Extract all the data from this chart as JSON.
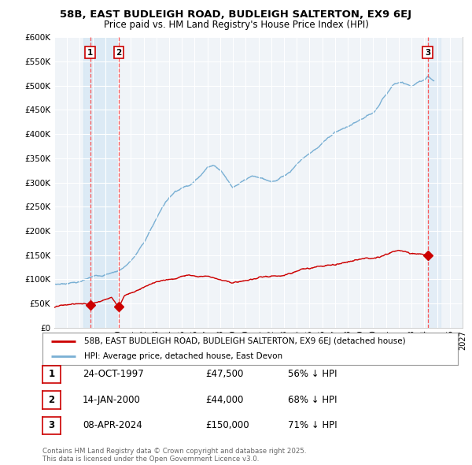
{
  "title_line1": "58B, EAST BUDLEIGH ROAD, BUDLEIGH SALTERTON, EX9 6EJ",
  "title_line2": "Price paid vs. HM Land Registry's House Price Index (HPI)",
  "ylim": [
    0,
    600000
  ],
  "yticks": [
    0,
    50000,
    100000,
    150000,
    200000,
    250000,
    300000,
    350000,
    400000,
    450000,
    500000,
    550000,
    600000
  ],
  "ytick_labels": [
    "£0",
    "£50K",
    "£100K",
    "£150K",
    "£200K",
    "£250K",
    "£300K",
    "£350K",
    "£400K",
    "£450K",
    "£500K",
    "£550K",
    "£600K"
  ],
  "xlim_start": 1995.0,
  "xlim_end": 2027.0,
  "xticks": [
    1995,
    1996,
    1997,
    1998,
    1999,
    2000,
    2001,
    2002,
    2003,
    2004,
    2005,
    2006,
    2007,
    2008,
    2009,
    2010,
    2011,
    2012,
    2013,
    2014,
    2015,
    2016,
    2017,
    2018,
    2019,
    2020,
    2021,
    2022,
    2023,
    2024,
    2025,
    2026,
    2027
  ],
  "transactions": [
    {
      "date": 1997.81,
      "price": 47500,
      "label": "1"
    },
    {
      "date": 2000.04,
      "price": 44000,
      "label": "2"
    },
    {
      "date": 2024.27,
      "price": 150000,
      "label": "3"
    }
  ],
  "legend_entries": [
    {
      "color": "#cc0000",
      "text": "58B, EAST BUDLEIGH ROAD, BUDLEIGH SALTERTON, EX9 6EJ (detached house)"
    },
    {
      "color": "#7ab0d4",
      "text": "HPI: Average price, detached house, East Devon"
    }
  ],
  "table_rows": [
    {
      "num": "1",
      "date": "24-OCT-1997",
      "price": "£47,500",
      "note": "56% ↓ HPI"
    },
    {
      "num": "2",
      "date": "14-JAN-2000",
      "price": "£44,000",
      "note": "68% ↓ HPI"
    },
    {
      "num": "3",
      "date": "08-APR-2024",
      "price": "£150,000",
      "note": "71% ↓ HPI"
    }
  ],
  "footer": "Contains HM Land Registry data © Crown copyright and database right 2025.\nThis data is licensed under the Open Government Licence v3.0.",
  "bg_color": "#ffffff",
  "plot_bg_color": "#f0f4f8",
  "grid_color": "#ffffff",
  "hpi_color": "#7ab0d4",
  "price_color": "#cc0000",
  "marker_color": "#cc0000",
  "shade_color": "#d0e4f4",
  "hpi_anchors": [
    [
      1995.0,
      90000
    ],
    [
      1995.5,
      91000
    ],
    [
      1996.0,
      93000
    ],
    [
      1996.5,
      95000
    ],
    [
      1997.0,
      96000
    ],
    [
      1997.5,
      100000
    ],
    [
      1998.0,
      104000
    ],
    [
      1998.5,
      107000
    ],
    [
      1999.0,
      110000
    ],
    [
      1999.5,
      114000
    ],
    [
      2000.0,
      118000
    ],
    [
      2000.5,
      127000
    ],
    [
      2001.0,
      138000
    ],
    [
      2001.5,
      155000
    ],
    [
      2002.0,
      175000
    ],
    [
      2002.5,
      200000
    ],
    [
      2003.0,
      225000
    ],
    [
      2003.5,
      252000
    ],
    [
      2004.0,
      270000
    ],
    [
      2004.5,
      285000
    ],
    [
      2005.0,
      292000
    ],
    [
      2005.5,
      298000
    ],
    [
      2006.0,
      308000
    ],
    [
      2006.5,
      322000
    ],
    [
      2007.0,
      338000
    ],
    [
      2007.5,
      342000
    ],
    [
      2008.0,
      335000
    ],
    [
      2008.5,
      318000
    ],
    [
      2009.0,
      300000
    ],
    [
      2009.5,
      305000
    ],
    [
      2010.0,
      312000
    ],
    [
      2010.5,
      318000
    ],
    [
      2011.0,
      315000
    ],
    [
      2011.5,
      310000
    ],
    [
      2012.0,
      308000
    ],
    [
      2012.5,
      312000
    ],
    [
      2013.0,
      320000
    ],
    [
      2013.5,
      330000
    ],
    [
      2014.0,
      345000
    ],
    [
      2014.5,
      358000
    ],
    [
      2015.0,
      368000
    ],
    [
      2015.5,
      378000
    ],
    [
      2016.0,
      390000
    ],
    [
      2016.5,
      400000
    ],
    [
      2017.0,
      412000
    ],
    [
      2017.5,
      418000
    ],
    [
      2018.0,
      422000
    ],
    [
      2018.5,
      428000
    ],
    [
      2019.0,
      432000
    ],
    [
      2019.5,
      438000
    ],
    [
      2020.0,
      442000
    ],
    [
      2020.5,
      460000
    ],
    [
      2021.0,
      480000
    ],
    [
      2021.5,
      500000
    ],
    [
      2022.0,
      510000
    ],
    [
      2022.5,
      505000
    ],
    [
      2023.0,
      498000
    ],
    [
      2023.5,
      505000
    ],
    [
      2024.0,
      512000
    ],
    [
      2024.25,
      520000
    ],
    [
      2024.5,
      515000
    ],
    [
      2024.75,
      510000
    ]
  ],
  "price_anchors": [
    [
      1995.0,
      42000
    ],
    [
      1995.5,
      44000
    ],
    [
      1996.0,
      45000
    ],
    [
      1996.5,
      46000
    ],
    [
      1997.0,
      47000
    ],
    [
      1997.81,
      47500
    ],
    [
      1997.82,
      47500
    ],
    [
      1998.0,
      50000
    ],
    [
      1998.5,
      55000
    ],
    [
      1999.0,
      60000
    ],
    [
      1999.5,
      65000
    ],
    [
      2000.04,
      44000
    ],
    [
      2000.05,
      44000
    ],
    [
      2000.5,
      70000
    ],
    [
      2001.0,
      77000
    ],
    [
      2001.5,
      82000
    ],
    [
      2002.0,
      88000
    ],
    [
      2002.5,
      92000
    ],
    [
      2003.0,
      95000
    ],
    [
      2003.5,
      98000
    ],
    [
      2004.0,
      100000
    ],
    [
      2004.5,
      103000
    ],
    [
      2005.0,
      107000
    ],
    [
      2005.5,
      108000
    ],
    [
      2006.0,
      108000
    ],
    [
      2006.5,
      108000
    ],
    [
      2007.0,
      108000
    ],
    [
      2007.5,
      107000
    ],
    [
      2008.0,
      105000
    ],
    [
      2008.5,
      103000
    ],
    [
      2009.0,
      100000
    ],
    [
      2009.5,
      101000
    ],
    [
      2010.0,
      103000
    ],
    [
      2010.5,
      104000
    ],
    [
      2011.0,
      107000
    ],
    [
      2011.5,
      108000
    ],
    [
      2012.0,
      108000
    ],
    [
      2012.5,
      109000
    ],
    [
      2013.0,
      110000
    ],
    [
      2013.5,
      112000
    ],
    [
      2014.0,
      115000
    ],
    [
      2014.5,
      118000
    ],
    [
      2015.0,
      121000
    ],
    [
      2015.5,
      124000
    ],
    [
      2016.0,
      127000
    ],
    [
      2016.5,
      130000
    ],
    [
      2017.0,
      133000
    ],
    [
      2017.5,
      136000
    ],
    [
      2018.0,
      138000
    ],
    [
      2018.5,
      140000
    ],
    [
      2019.0,
      143000
    ],
    [
      2019.5,
      146000
    ],
    [
      2020.0,
      148000
    ],
    [
      2020.5,
      152000
    ],
    [
      2021.0,
      158000
    ],
    [
      2021.5,
      162000
    ],
    [
      2022.0,
      165000
    ],
    [
      2022.5,
      163000
    ],
    [
      2023.0,
      158000
    ],
    [
      2023.5,
      155000
    ],
    [
      2024.0,
      152000
    ],
    [
      2024.27,
      150000
    ],
    [
      2024.5,
      148000
    ]
  ]
}
